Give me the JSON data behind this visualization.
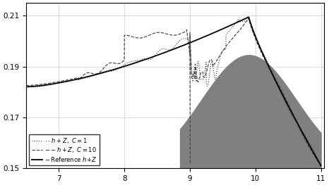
{
  "xlim": [
    6.5,
    11.05
  ],
  "ylim": [
    0.15,
    0.215
  ],
  "yticks": [
    0.15,
    0.17,
    0.19,
    0.21
  ],
  "xticks": [
    7,
    8,
    9,
    10,
    11
  ],
  "bg_color": "#ffffff",
  "grid_color": "#cccccc",
  "fill_color": "#808080",
  "ref_color": "#000000",
  "dash_color": "#444444",
  "dot_color": "#444444"
}
